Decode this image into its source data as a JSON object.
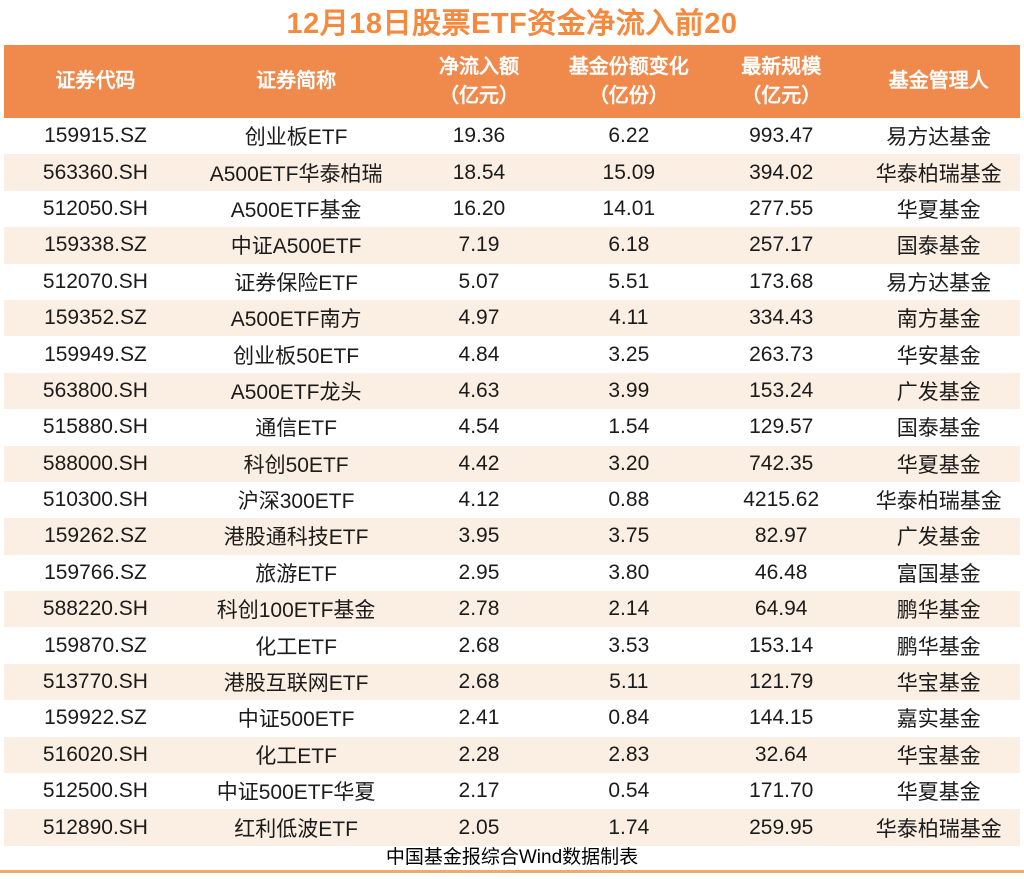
{
  "title": "12月18日股票ETF资金净流入前20",
  "header": {
    "cols": [
      {
        "line1": "证券代码",
        "line2": ""
      },
      {
        "line1": "证券简称",
        "line2": ""
      },
      {
        "line1": "净流入额",
        "line2": "（亿元）"
      },
      {
        "line1": "基金份额变化",
        "line2": "（亿份）"
      },
      {
        "line1": "最新规模",
        "line2": "（亿元）"
      },
      {
        "line1": "基金管理人",
        "line2": ""
      }
    ]
  },
  "chart_data": {
    "type": "table",
    "title": "12月18日股票ETF资金净流入前20",
    "columns": [
      "证券代码",
      "证券简称",
      "净流入额（亿元）",
      "基金份额变化（亿份）",
      "最新规模（亿元）",
      "基金管理人"
    ],
    "rows": [
      [
        "159915.SZ",
        "创业板ETF",
        "19.36",
        "6.22",
        "993.47",
        "易方达基金"
      ],
      [
        "563360.SH",
        "A500ETF华泰柏瑞",
        "18.54",
        "15.09",
        "394.02",
        "华泰柏瑞基金"
      ],
      [
        "512050.SH",
        "A500ETF基金",
        "16.20",
        "14.01",
        "277.55",
        "华夏基金"
      ],
      [
        "159338.SZ",
        "中证A500ETF",
        "7.19",
        "6.18",
        "257.17",
        "国泰基金"
      ],
      [
        "512070.SH",
        "证券保险ETF",
        "5.07",
        "5.51",
        "173.68",
        "易方达基金"
      ],
      [
        "159352.SZ",
        "A500ETF南方",
        "4.97",
        "4.11",
        "334.43",
        "南方基金"
      ],
      [
        "159949.SZ",
        "创业板50ETF",
        "4.84",
        "3.25",
        "263.73",
        "华安基金"
      ],
      [
        "563800.SH",
        "A500ETF龙头",
        "4.63",
        "3.99",
        "153.24",
        "广发基金"
      ],
      [
        "515880.SH",
        "通信ETF",
        "4.54",
        "1.54",
        "129.57",
        "国泰基金"
      ],
      [
        "588000.SH",
        "科创50ETF",
        "4.42",
        "3.20",
        "742.35",
        "华夏基金"
      ],
      [
        "510300.SH",
        "沪深300ETF",
        "4.12",
        "0.88",
        "4215.62",
        "华泰柏瑞基金"
      ],
      [
        "159262.SZ",
        "港股通科技ETF",
        "3.95",
        "3.75",
        "82.97",
        "广发基金"
      ],
      [
        "159766.SZ",
        "旅游ETF",
        "2.95",
        "3.80",
        "46.48",
        "富国基金"
      ],
      [
        "588220.SH",
        "科创100ETF基金",
        "2.78",
        "2.14",
        "64.94",
        "鹏华基金"
      ],
      [
        "159870.SZ",
        "化工ETF",
        "2.68",
        "3.53",
        "153.14",
        "鹏华基金"
      ],
      [
        "513770.SH",
        "港股互联网ETF",
        "2.68",
        "5.11",
        "121.79",
        "华宝基金"
      ],
      [
        "159922.SZ",
        "中证500ETF",
        "2.41",
        "0.84",
        "144.15",
        "嘉实基金"
      ],
      [
        "516020.SH",
        "化工ETF",
        "2.28",
        "2.83",
        "32.64",
        "华宝基金"
      ],
      [
        "512500.SH",
        "中证500ETF华夏",
        "2.17",
        "0.54",
        "171.70",
        "华夏基金"
      ],
      [
        "512890.SH",
        "红利低波ETF",
        "2.05",
        "1.74",
        "259.95",
        "华泰柏瑞基金"
      ]
    ],
    "source_note": "中国基金报综合Wind数据制表"
  },
  "colors": {
    "title_orange": "#F5893E",
    "header_bg": "#EF8A4C",
    "header_text": "#FFFFFF",
    "stripe": "#FBEEE2",
    "body_text": "#1B1B1B",
    "bottom_line": "#F3A96E"
  }
}
